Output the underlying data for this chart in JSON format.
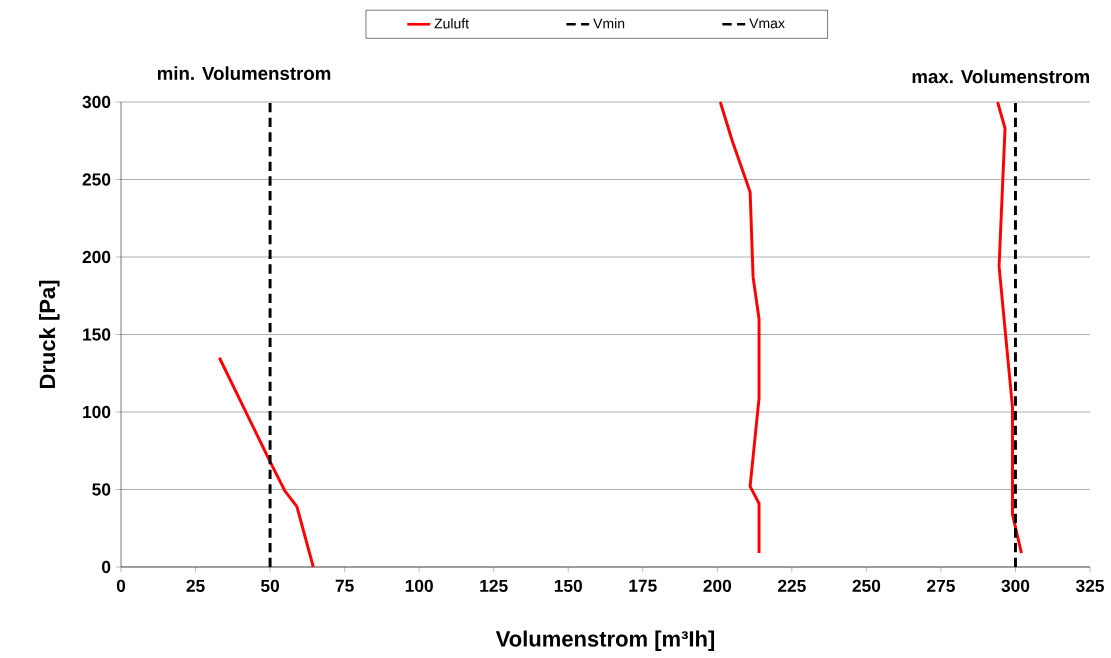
{
  "chart_data": {
    "type": "line",
    "xlabel": "Volumenstrom [m³Ih]",
    "ylabel": "Druck [Pa]",
    "annotations": [
      "min. Volumenstrom",
      "max. Volumenstrom"
    ],
    "series": [
      {
        "name": "Zuluft",
        "color": "#ff0000",
        "line_style": "solid",
        "x": [
          33,
          50,
          55,
          59,
          64.5,
          null,
          201,
          205,
          211,
          212,
          214,
          214,
          211,
          214,
          214,
          null,
          294,
          296.5,
          294.5,
          299,
          299,
          302
        ],
        "values": [
          135,
          68,
          49,
          39,
          0,
          null,
          300,
          275,
          242,
          187,
          160,
          109,
          52,
          41,
          9,
          null,
          300,
          283,
          194,
          103,
          34,
          9
        ]
      }
    ],
    "ref_lines": [
      {
        "axis": "x",
        "value": 50,
        "label": "Vmin",
        "color": "#000000",
        "line_style": "dashed"
      },
      {
        "axis": "x",
        "value": 300,
        "label": "Vmax",
        "color": "#000000",
        "line_style": "dashed"
      }
    ],
    "xlim": [
      0,
      325
    ],
    "ylim": [
      0,
      300
    ],
    "xticks": [
      0,
      25,
      50,
      75,
      100,
      125,
      150,
      175,
      200,
      225,
      250,
      275,
      300,
      325
    ],
    "yticks": [
      0,
      50,
      100,
      150,
      200,
      250,
      300
    ],
    "grid": "y",
    "legend": "top",
    "marker": "none"
  }
}
